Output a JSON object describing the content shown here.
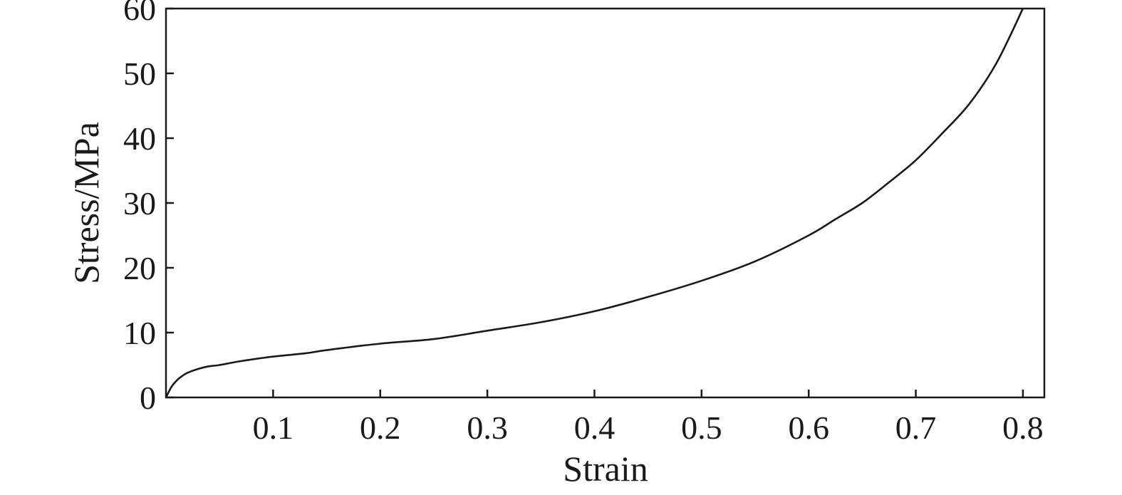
{
  "chart_data": {
    "type": "line",
    "title": "",
    "xlabel": "Strain",
    "ylabel": "Stress/MPa",
    "xlim": [
      0,
      0.82
    ],
    "ylim": [
      0,
      60
    ],
    "xticks": [
      0.1,
      0.2,
      0.3,
      0.4,
      0.5,
      0.6,
      0.7,
      0.8
    ],
    "xtick_labels": [
      "0.1",
      "0.2",
      "0.3",
      "0.4",
      "0.5",
      "0.6",
      "0.7",
      "0.8"
    ],
    "yticks": [
      0,
      10,
      20,
      30,
      40,
      50,
      60
    ],
    "ytick_labels": [
      "0",
      "10",
      "20",
      "30",
      "40",
      "50",
      "60"
    ],
    "grid": false,
    "legend": false,
    "series": [
      {
        "color": "#1a1a1a",
        "x": [
          0.0,
          0.005,
          0.01,
          0.015,
          0.02,
          0.03,
          0.04,
          0.05,
          0.07,
          0.1,
          0.13,
          0.15,
          0.2,
          0.25,
          0.3,
          0.35,
          0.4,
          0.45,
          0.5,
          0.55,
          0.6,
          0.625,
          0.65,
          0.675,
          0.7,
          0.725,
          0.75,
          0.775,
          0.8
        ],
        "y": [
          0.0,
          1.6,
          2.6,
          3.3,
          3.8,
          4.4,
          4.8,
          5.0,
          5.6,
          6.3,
          6.8,
          7.3,
          8.3,
          9.0,
          10.3,
          11.6,
          13.3,
          15.5,
          18.0,
          21.0,
          25.0,
          27.5,
          30.0,
          33.2,
          36.6,
          40.8,
          45.3,
          51.5,
          60.0
        ]
      }
    ]
  }
}
